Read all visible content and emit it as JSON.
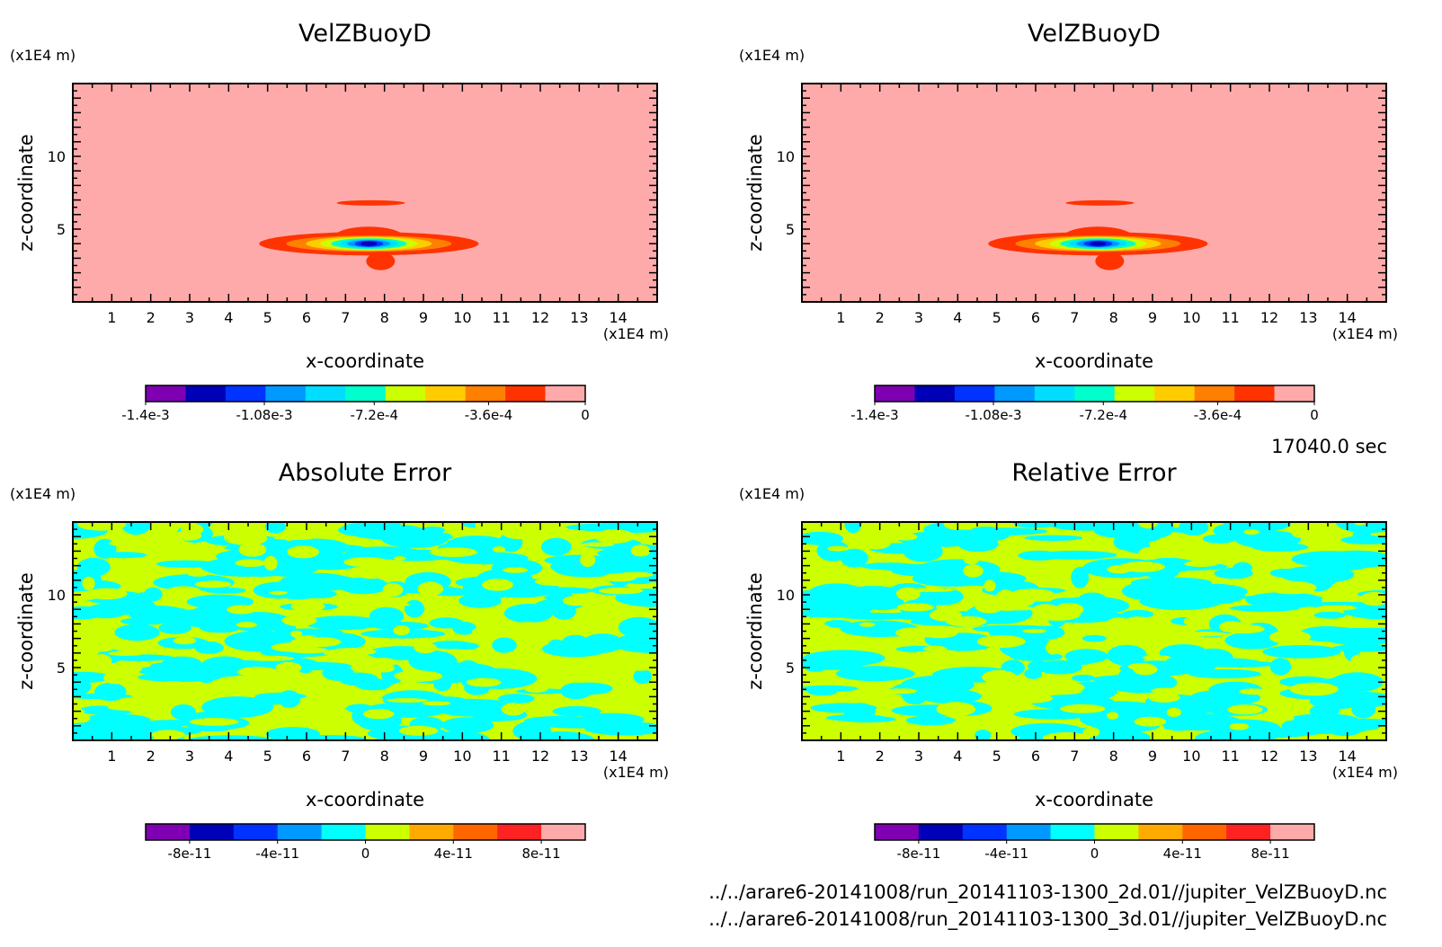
{
  "time_label": "17040.0 sec",
  "file_paths": [
    "../../arare6-20141008/run_20141103-1300_2d.01//jupiter_VelZBuoyD.nc",
    "../../arare6-20141008/run_20141103-1300_3d.01//jupiter_VelZBuoyD.nc"
  ],
  "chart_data": [
    {
      "type": "heatmap",
      "title": "VelZBuoyD",
      "xlabel": "x-coordinate",
      "ylabel": "z-coordinate",
      "x_unit": "(x1E4 m)",
      "y_unit": "(x1E4 m)",
      "xlim": [
        0,
        15
      ],
      "ylim": [
        0,
        15
      ],
      "xticks": [
        "1",
        "2",
        "3",
        "4",
        "5",
        "6",
        "7",
        "8",
        "9",
        "10",
        "11",
        "12",
        "13",
        "14"
      ],
      "yticks": [
        "5",
        "10"
      ],
      "pattern": "plume",
      "colorbar": {
        "colors": [
          "#7f00b2",
          "#0000b8",
          "#0033ff",
          "#0099ff",
          "#00ddff",
          "#00ffcc",
          "#ccff00",
          "#ffcc00",
          "#ff8000",
          "#ff3300",
          "#ffaaaa"
        ],
        "labels": [
          "-1.4e-3",
          "-1.08e-3",
          "-7.2e-4",
          "-3.6e-4",
          "0"
        ]
      }
    },
    {
      "type": "heatmap",
      "title": "VelZBuoyD",
      "xlabel": "x-coordinate",
      "ylabel": "z-coordinate",
      "x_unit": "(x1E4 m)",
      "y_unit": "(x1E4 m)",
      "xlim": [
        0,
        15
      ],
      "ylim": [
        0,
        15
      ],
      "xticks": [
        "1",
        "2",
        "3",
        "4",
        "5",
        "6",
        "7",
        "8",
        "9",
        "10",
        "11",
        "12",
        "13",
        "14"
      ],
      "yticks": [
        "5",
        "10"
      ],
      "pattern": "plume",
      "colorbar": {
        "colors": [
          "#7f00b2",
          "#0000b8",
          "#0033ff",
          "#0099ff",
          "#00ddff",
          "#00ffcc",
          "#ccff00",
          "#ffcc00",
          "#ff8000",
          "#ff3300",
          "#ffaaaa"
        ],
        "labels": [
          "-1.4e-3",
          "-1.08e-3",
          "-7.2e-4",
          "-3.6e-4",
          "0"
        ]
      }
    },
    {
      "type": "heatmap",
      "title": "Absolute Error",
      "xlabel": "x-coordinate",
      "ylabel": "z-coordinate",
      "x_unit": "(x1E4 m)",
      "y_unit": "(x1E4 m)",
      "xlim": [
        0,
        15
      ],
      "ylim": [
        0,
        15
      ],
      "xticks": [
        "1",
        "2",
        "3",
        "4",
        "5",
        "6",
        "7",
        "8",
        "9",
        "10",
        "11",
        "12",
        "13",
        "14"
      ],
      "yticks": [
        "5",
        "10"
      ],
      "pattern": "noise",
      "noise_seed": 7,
      "colorbar": {
        "colors": [
          "#7f00b2",
          "#0000b8",
          "#0033ff",
          "#0099ff",
          "#00ffff",
          "#ccff00",
          "#ffaa00",
          "#ff6600",
          "#ff2222",
          "#ffaaaa"
        ],
        "labels": [
          "-8e-11",
          "-4e-11",
          "0",
          "4e-11",
          "8e-11"
        ]
      }
    },
    {
      "type": "heatmap",
      "title": "Relative Error",
      "xlabel": "x-coordinate",
      "ylabel": "z-coordinate",
      "x_unit": "(x1E4 m)",
      "y_unit": "(x1E4 m)",
      "xlim": [
        0,
        15
      ],
      "ylim": [
        0,
        15
      ],
      "xticks": [
        "1",
        "2",
        "3",
        "4",
        "5",
        "6",
        "7",
        "8",
        "9",
        "10",
        "11",
        "12",
        "13",
        "14"
      ],
      "yticks": [
        "5",
        "10"
      ],
      "pattern": "noise",
      "noise_seed": 13,
      "colorbar": {
        "colors": [
          "#7f00b2",
          "#0000b8",
          "#0033ff",
          "#0099ff",
          "#00ffff",
          "#ccff00",
          "#ffaa00",
          "#ff6600",
          "#ff2222",
          "#ffaaaa"
        ],
        "labels": [
          "-8e-11",
          "-4e-11",
          "0",
          "4e-11",
          "8e-11"
        ]
      }
    }
  ]
}
